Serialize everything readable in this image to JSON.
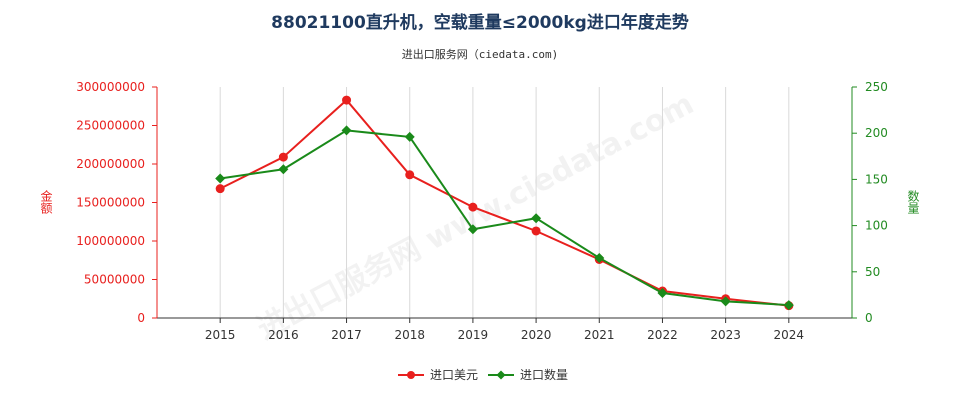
{
  "chart_data": {
    "type": "line",
    "title": "88021100直升机，空载重量≤2000kg进口年度走势",
    "subtitle": "进出口服务网（ciedata.com)",
    "watermark": "进出口服务网 www.ciedata.com",
    "categories": [
      "2015",
      "2016",
      "2017",
      "2018",
      "2019",
      "2020",
      "2021",
      "2022",
      "2023",
      "2024"
    ],
    "y_left": {
      "label": "金额",
      "range": [
        0,
        300000000
      ],
      "ticks": [
        "0",
        "50000000",
        "100000000",
        "150000000",
        "200000000",
        "250000000",
        "300000000"
      ],
      "color": "#e8201e"
    },
    "y_right": {
      "label": "数量",
      "range": [
        0,
        250
      ],
      "ticks": [
        "0",
        "50",
        "100",
        "150",
        "200",
        "250"
      ],
      "color": "#228b22"
    },
    "series": [
      {
        "name": "进口美元",
        "axis": "left",
        "color": "#e8201e",
        "values": [
          168000000,
          209000000,
          283000000,
          186000000,
          144000000,
          113000000,
          76000000,
          35000000,
          25000000,
          16000000
        ]
      },
      {
        "name": "进口数量",
        "axis": "right",
        "color": "#1a8a1a",
        "values": [
          151,
          161,
          203,
          196,
          96,
          108,
          65,
          27,
          18,
          14
        ]
      }
    ],
    "legend_position": "bottom-center",
    "grid": "vertical"
  }
}
